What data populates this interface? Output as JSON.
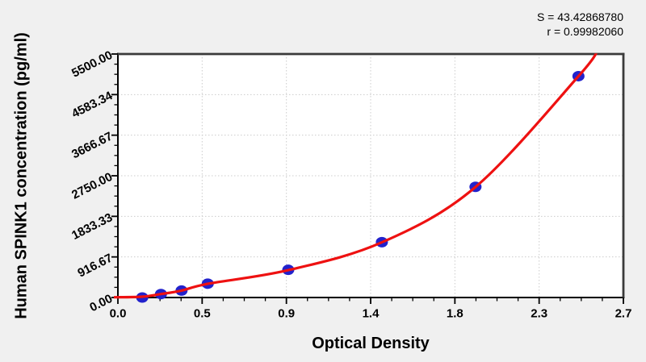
{
  "colors": {
    "background": "#f0f0f0",
    "plot_background": "#ffffff",
    "curve": "#ee1111",
    "points": "#2222cc",
    "grid": "#cccccc",
    "axis": "#000000",
    "frame": "#3a3a3a",
    "text": "#000000"
  },
  "chart_data": {
    "type": "scatter",
    "title": "",
    "xlabel": "Optical Density",
    "ylabel": "Human SPINK1 concentration (pg/ml)",
    "xlim": [
      0,
      2.7
    ],
    "ylim": [
      0,
      5500
    ],
    "x_tick_values": [
      0,
      0.45,
      0.9,
      1.35,
      1.8,
      2.25,
      2.7
    ],
    "x_tick_labels": [
      "0.0",
      "0.5",
      "0.9",
      "1.4",
      "1.8",
      "2.3",
      "2.7"
    ],
    "y_tick_values": [
      0,
      916.67,
      1833.33,
      2750,
      3666.67,
      4583.34,
      5500
    ],
    "y_tick_labels": [
      "0.00",
      "916.67",
      "1833.33",
      "2750.00",
      "3666.67",
      "4583.34",
      "5500.00"
    ],
    "minor_divisions": 4,
    "grid": true,
    "legend": "none",
    "series": [
      {
        "name": "standards",
        "type": "scatter",
        "points": [
          {
            "od": 0.13,
            "conc": 0
          },
          {
            "od": 0.23,
            "conc": 78.125
          },
          {
            "od": 0.34,
            "conc": 156.25
          },
          {
            "od": 0.48,
            "conc": 312.5
          },
          {
            "od": 0.91,
            "conc": 625
          },
          {
            "od": 1.41,
            "conc": 1250
          },
          {
            "od": 1.91,
            "conc": 2500
          },
          {
            "od": 2.46,
            "conc": 5000
          }
        ]
      },
      {
        "name": "fitted-curve",
        "type": "line",
        "control_points": [
          [
            -0.02,
            5
          ],
          [
            0.13,
            18
          ],
          [
            0.23,
            78
          ],
          [
            0.34,
            156
          ],
          [
            0.48,
            310
          ],
          [
            0.91,
            618
          ],
          [
            1.41,
            1245
          ],
          [
            1.91,
            2495
          ],
          [
            2.46,
            5000
          ],
          [
            2.57,
            5640
          ]
        ]
      }
    ],
    "annotations": [
      "S = 43.42868780",
      "r = 0.99982060"
    ],
    "fit": {
      "S": "43.42868780",
      "r": "0.99982060"
    }
  }
}
